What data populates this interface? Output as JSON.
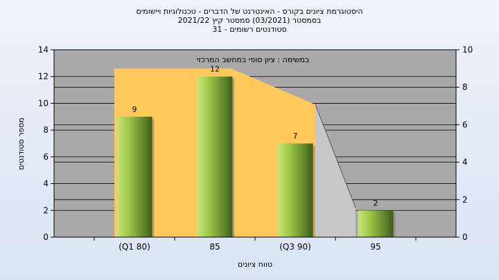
{
  "title_lines": [
    "היסטוגרמת ציונים בקורס - האינטרנט של הדברים - טכנולוגיות ויישומים",
    "בסמסטר  (03/2021)  סמסטר קיץ  2021/22",
    "סטודנטים רשומים - 31"
  ],
  "chart_data": {
    "type": "bar",
    "categories": [
      "(Q1 80)",
      "85",
      "(Q3 90)",
      "95"
    ],
    "values": [
      9,
      12,
      7,
      2
    ],
    "ylabel": "מספר סטודנטים",
    "xlabel": "טווח ציונים",
    "ylim": [
      0,
      14
    ],
    "yticks": [
      0,
      2,
      4,
      6,
      8,
      10,
      12,
      14
    ],
    "y2lim": [
      0,
      10
    ],
    "y2ticks": [
      0,
      2,
      4,
      6,
      8,
      10
    ],
    "annotation": "במשימה : ציון סופי במחשב המרכזי",
    "grid": true,
    "colors": {
      "plot_bg": "#a9a9a9",
      "band": "#ffc85a",
      "gray_area": "#c8c8c8",
      "bar_light": "#c8e67a",
      "bar_dark": "#3f5f1a"
    }
  }
}
